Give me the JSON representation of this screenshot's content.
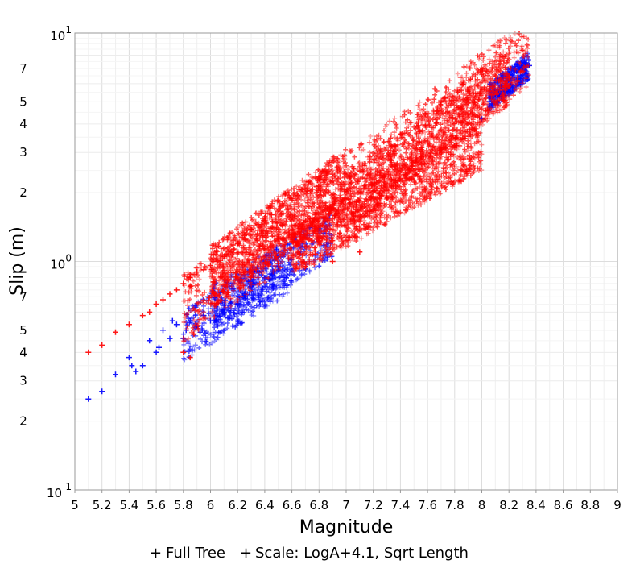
{
  "chart_data": {
    "type": "scatter",
    "title": "",
    "xlabel": "Magnitude",
    "ylabel": "Slip (m)",
    "xlim": [
      5,
      9
    ],
    "ylim": [
      0.1,
      10
    ],
    "yscale": "log",
    "grid": true,
    "legend_position": "bottom",
    "x_ticks": [
      "5",
      "5.2",
      "5.4",
      "5.6",
      "5.8",
      "6",
      "6.2",
      "6.4",
      "6.6",
      "6.8",
      "7",
      "7.2",
      "7.4",
      "7.6",
      "7.8",
      "8",
      "8.2",
      "8.4",
      "8.6",
      "8.8",
      "9"
    ],
    "y_major_ticks": [
      {
        "value": 0.1,
        "base": "10",
        "exp": "-1"
      },
      {
        "value": 1,
        "base": "10",
        "exp": "0"
      },
      {
        "value": 10,
        "base": "10",
        "exp": "1"
      }
    ],
    "y_minor_labels": [
      {
        "value": 0.2,
        "label": "2"
      },
      {
        "value": 0.3,
        "label": "3"
      },
      {
        "value": 0.4,
        "label": "4"
      },
      {
        "value": 0.5,
        "label": "5"
      },
      {
        "value": 0.7,
        "label": "7"
      },
      {
        "value": 2,
        "label": "2"
      },
      {
        "value": 3,
        "label": "3"
      },
      {
        "value": 4,
        "label": "4"
      },
      {
        "value": 5,
        "label": "5"
      },
      {
        "value": 7,
        "label": "7"
      }
    ],
    "series": [
      {
        "name": "Full Tree",
        "color": "#0000ff",
        "marker": "+",
        "points": [
          [
            5.1,
            0.25
          ],
          [
            5.2,
            0.27
          ],
          [
            5.3,
            0.32
          ],
          [
            5.4,
            0.38
          ],
          [
            5.42,
            0.35
          ],
          [
            5.45,
            0.33
          ],
          [
            5.5,
            0.35
          ],
          [
            5.55,
            0.45
          ],
          [
            5.6,
            0.4
          ],
          [
            5.62,
            0.42
          ],
          [
            5.65,
            0.5
          ],
          [
            5.7,
            0.46
          ],
          [
            5.72,
            0.55
          ],
          [
            5.75,
            0.53
          ],
          [
            5.8,
            0.46
          ],
          [
            5.82,
            0.5
          ],
          [
            5.85,
            0.55
          ],
          [
            5.9,
            0.52
          ],
          [
            5.95,
            0.58
          ],
          [
            6.0,
            0.55
          ],
          [
            6.05,
            0.62
          ],
          [
            6.1,
            0.6
          ],
          [
            6.15,
            0.67
          ],
          [
            6.2,
            0.65
          ],
          [
            6.25,
            0.72
          ],
          [
            6.3,
            0.78
          ],
          [
            6.4,
            0.85
          ],
          [
            6.5,
            0.95
          ],
          [
            8.0,
            4.2
          ],
          [
            8.1,
            5.4
          ],
          [
            8.2,
            6.3
          ],
          [
            8.3,
            7.0
          ],
          [
            8.35,
            7.2
          ]
        ],
        "bands": [
          {
            "x_start": 5.8,
            "x_end": 6.6,
            "y_start": 0.47,
            "y_end": 0.95,
            "halfwidth": 0.22
          },
          {
            "x_start": 6.0,
            "x_end": 6.9,
            "y_start": 0.62,
            "y_end": 1.3,
            "halfwidth": 0.2
          },
          {
            "x_start": 8.05,
            "x_end": 8.35,
            "y_start": 5.2,
            "y_end": 7.2,
            "halfwidth": 0.12
          }
        ]
      },
      {
        "name": "Scale: LogA+4.1, Sqrt Length",
        "color": "#ff0000",
        "marker": "+",
        "points": [
          [
            5.1,
            0.4
          ],
          [
            5.2,
            0.43
          ],
          [
            5.3,
            0.49
          ],
          [
            5.4,
            0.53
          ],
          [
            5.5,
            0.58
          ],
          [
            5.55,
            0.6
          ],
          [
            5.6,
            0.65
          ],
          [
            5.65,
            0.68
          ],
          [
            5.7,
            0.72
          ],
          [
            5.75,
            0.75
          ],
          [
            5.8,
            0.8
          ],
          [
            5.85,
            0.85
          ],
          [
            5.9,
            0.9
          ],
          [
            5.95,
            0.92
          ],
          [
            6.0,
            0.96
          ],
          [
            6.05,
            1.0
          ],
          [
            6.1,
            1.05
          ],
          [
            6.15,
            1.1
          ],
          [
            6.2,
            1.2
          ],
          [
            6.25,
            1.3
          ],
          [
            6.3,
            1.38
          ],
          [
            6.35,
            1.45
          ],
          [
            6.4,
            1.55
          ],
          [
            6.45,
            1.6
          ],
          [
            5.8,
            0.4
          ],
          [
            5.85,
            0.38
          ],
          [
            6.5,
            0.98
          ],
          [
            6.7,
            0.95
          ],
          [
            6.9,
            1.0
          ],
          [
            7.1,
            1.1
          ]
        ],
        "bands": [
          {
            "x_start": 5.8,
            "x_end": 8.35,
            "y_start": 0.62,
            "y_end": 8.3,
            "halfwidth": 0.3
          },
          {
            "x_start": 6.0,
            "x_end": 7.0,
            "y_start": 0.85,
            "y_end": 2.3,
            "halfwidth": 0.28
          },
          {
            "x_start": 6.6,
            "x_end": 8.0,
            "y_start": 1.1,
            "y_end": 3.2,
            "halfwidth": 0.22
          },
          {
            "x_start": 7.0,
            "x_end": 8.2,
            "y_start": 1.8,
            "y_end": 6.5,
            "halfwidth": 0.25
          }
        ]
      }
    ]
  }
}
